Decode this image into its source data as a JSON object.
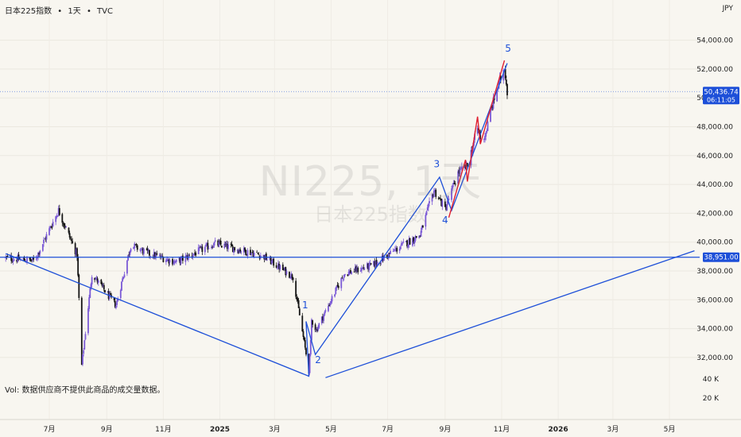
{
  "header": {
    "title": "日本225指数",
    "interval": "1天",
    "source": "TVC",
    "separator": "•"
  },
  "currency": "JPY",
  "vol_note": "Vol: 数据供应商不提供此商品的成交量数据。",
  "watermark": {
    "symbol": "NI225, 1天",
    "name": "日本225指数"
  },
  "colors": {
    "background": "#f8f6f0",
    "up": "#7b5ad6",
    "down": "#151515",
    "wave_line": "#1d4fd8",
    "wave_label": "#1d4fd8",
    "channel_red": "#e01e2e",
    "price_tag": "#1d4fd8"
  },
  "chart_data": {
    "type": "candlestick",
    "symbol": "NI225",
    "name": "日本225指数",
    "interval": "1天",
    "ylim": [
      30600,
      55000
    ],
    "y_ticks": [
      32000,
      34000,
      36000,
      38000,
      40000,
      42000,
      44000,
      46000,
      48000,
      50000,
      52000,
      54000
    ],
    "y_tick_labels": [
      "32,000.00",
      "34,000.00",
      "36,000.00",
      "38,000.00",
      "40,000.00",
      "42,000.00",
      "44,000.00",
      "46,000.00",
      "48,000.00",
      "50,000.00",
      "52,000.00",
      "54,000.00"
    ],
    "x_labels": [
      "7月",
      "9月",
      "11月",
      "2025",
      "3月",
      "5月",
      "7月",
      "9月",
      "11月",
      "2026",
      "3月",
      "5月"
    ],
    "x_label_dates": [
      "2024-07-01",
      "2024-09-01",
      "2024-11-01",
      "2025-01-01",
      "2025-03-01",
      "2025-05-01",
      "2025-07-01",
      "2025-09-01",
      "2025-11-01",
      "2026-01-01",
      "2026-03-01",
      "2026-05-01"
    ],
    "last_price": 50436.74,
    "last_price_label": "50,436.74",
    "countdown": "06:11:05",
    "horizontal_level": 38951.0,
    "horizontal_level_label": "38,951.00",
    "volume_axis_labels": [
      "40 K",
      "20 K"
    ],
    "anchors": [
      {
        "date": "2024-05-15",
        "close": 38900
      },
      {
        "date": "2024-06-15",
        "close": 38700
      },
      {
        "date": "2024-07-11",
        "close": 42200
      },
      {
        "date": "2024-07-31",
        "close": 39100
      },
      {
        "date": "2024-08-05",
        "close": 31450
      },
      {
        "date": "2024-08-16",
        "close": 37800
      },
      {
        "date": "2024-09-11",
        "close": 35600
      },
      {
        "date": "2024-09-27",
        "close": 39800
      },
      {
        "date": "2024-10-16",
        "close": 39200
      },
      {
        "date": "2024-11-15",
        "close": 38600
      },
      {
        "date": "2024-12-26",
        "close": 39900
      },
      {
        "date": "2025-02-15",
        "close": 39100
      },
      {
        "date": "2025-03-21",
        "close": 37600
      },
      {
        "date": "2025-04-07",
        "close": 31100
      },
      {
        "date": "2025-04-09",
        "close": 33000
      },
      {
        "date": "2025-04-10",
        "close": 34600
      },
      {
        "date": "2025-04-15",
        "close": 33900
      },
      {
        "date": "2025-05-15",
        "close": 37800
      },
      {
        "date": "2025-06-15",
        "close": 38400
      },
      {
        "date": "2025-07-15",
        "close": 39700
      },
      {
        "date": "2025-08-05",
        "close": 40500
      },
      {
        "date": "2025-08-20",
        "close": 43600
      },
      {
        "date": "2025-09-01",
        "close": 42300
      },
      {
        "date": "2025-09-15",
        "close": 44800
      },
      {
        "date": "2025-09-25",
        "close": 45300
      },
      {
        "date": "2025-10-06",
        "close": 47900
      },
      {
        "date": "2025-10-10",
        "close": 47000
      },
      {
        "date": "2025-10-15",
        "close": 47600
      },
      {
        "date": "2025-10-21",
        "close": 49300
      },
      {
        "date": "2025-11-04",
        "close": 52200
      },
      {
        "date": "2025-11-07",
        "close": 50436.74
      }
    ],
    "wave_path": [
      {
        "date": "2024-05-15",
        "value": 39200
      },
      {
        "date": "2025-04-07",
        "value": 30700
      },
      {
        "date": "2025-04-04",
        "value": 34500
      },
      {
        "date": "2025-04-14",
        "value": 32200
      },
      {
        "date": "2025-08-26",
        "value": 44500
      },
      {
        "date": "2025-09-08",
        "value": 42200
      },
      {
        "date": "2025-11-07",
        "value": 52400
      }
    ],
    "trendline": [
      {
        "date": "2025-04-25",
        "value": 30600
      },
      {
        "date": "2026-05-28",
        "value": 39400
      }
    ],
    "red_zigzag": [
      {
        "date": "2025-09-05",
        "value": 41700
      },
      {
        "date": "2025-09-23",
        "value": 45700
      },
      {
        "date": "2025-09-25",
        "value": 44200
      },
      {
        "date": "2025-10-06",
        "value": 48700
      },
      {
        "date": "2025-10-09",
        "value": 46800
      },
      {
        "date": "2025-11-04",
        "value": 52600
      }
    ],
    "wave_labels": [
      {
        "label": "1",
        "date": "2025-04-03",
        "value": 35400
      },
      {
        "label": "2",
        "date": "2025-04-17",
        "value": 31600
      },
      {
        "label": "3",
        "date": "2025-08-23",
        "value": 45200
      },
      {
        "label": "4",
        "date": "2025-09-01",
        "value": 41300
      },
      {
        "label": "5",
        "date": "2025-11-08",
        "value": 53200
      }
    ]
  }
}
